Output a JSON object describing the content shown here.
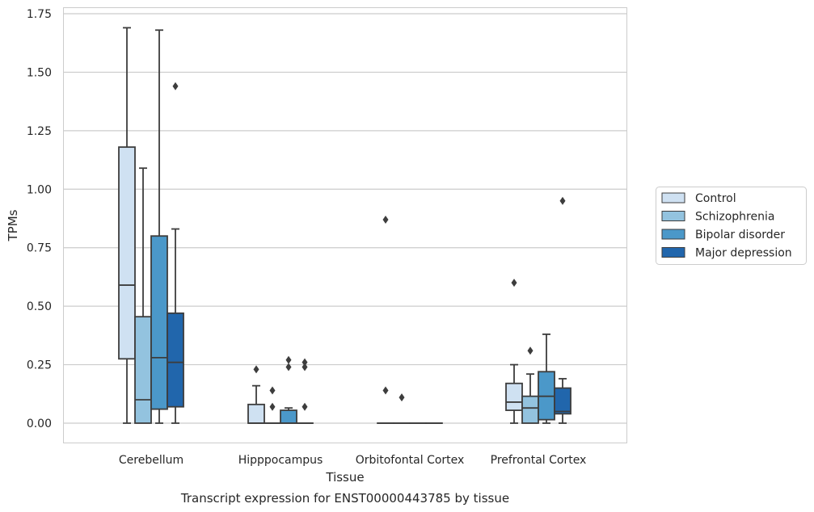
{
  "chart_data": {
    "type": "box",
    "title": "",
    "caption": "Transcript expression for ENST00000443785 by tissue",
    "xlabel": "Tissue",
    "ylabel": "TPMs",
    "ylim": [
      -0.08,
      1.77
    ],
    "yticks": [
      "0.00",
      "0.25",
      "0.50",
      "0.75",
      "1.00",
      "1.25",
      "1.50",
      "1.75"
    ],
    "ytick_values": [
      0,
      0.25,
      0.5,
      0.75,
      1.0,
      1.25,
      1.5,
      1.75
    ],
    "grid": "horizontal",
    "legend_position": "right",
    "categories": [
      "Cerebellum",
      "Hipppocampus",
      "Orbitofontal Cortex",
      "Prefrontal Cortex"
    ],
    "series": [
      {
        "name": "Control",
        "color": "#cfe1f2",
        "boxes": [
          {
            "whislo": 0.0,
            "q1": 0.275,
            "med": 0.59,
            "q3": 1.18,
            "whishi": 1.69,
            "fliers": []
          },
          {
            "whislo": 0.0,
            "q1": 0.0,
            "med": 0.0,
            "q3": 0.08,
            "whishi": 0.16,
            "fliers": [
              0.23
            ]
          },
          {
            "whislo": 0.0,
            "q1": 0.0,
            "med": 0.0,
            "q3": 0.0,
            "whishi": 0.0,
            "fliers": [
              0.87,
              0.14
            ]
          },
          {
            "whislo": 0.0,
            "q1": 0.055,
            "med": 0.09,
            "q3": 0.17,
            "whishi": 0.25,
            "fliers": [
              0.6
            ]
          }
        ]
      },
      {
        "name": "Schizophrenia",
        "color": "#93c3df",
        "boxes": [
          {
            "whislo": 0.0,
            "q1": 0.0,
            "med": 0.1,
            "q3": 0.455,
            "whishi": 1.09,
            "fliers": []
          },
          {
            "whislo": 0.0,
            "q1": 0.0,
            "med": 0.0,
            "q3": 0.0,
            "whishi": 0.0,
            "fliers": [
              0.14,
              0.07
            ]
          },
          {
            "whislo": 0.0,
            "q1": 0.0,
            "med": 0.0,
            "q3": 0.0,
            "whishi": 0.0,
            "fliers": [
              0.11
            ]
          },
          {
            "whislo": 0.0,
            "q1": 0.0,
            "med": 0.065,
            "q3": 0.115,
            "whishi": 0.21,
            "fliers": [
              0.31
            ]
          }
        ]
      },
      {
        "name": "Bipolar disorder",
        "color": "#4b98c9",
        "boxes": [
          {
            "whislo": 0.0,
            "q1": 0.06,
            "med": 0.28,
            "q3": 0.8,
            "whishi": 1.68,
            "fliers": []
          },
          {
            "whislo": 0.0,
            "q1": 0.0,
            "med": 0.0,
            "q3": 0.055,
            "whishi": 0.065,
            "fliers": [
              0.27,
              0.24
            ]
          },
          {
            "whislo": 0.0,
            "q1": 0.0,
            "med": 0.0,
            "q3": 0.0,
            "whishi": 0.0,
            "fliers": []
          },
          {
            "whislo": 0.0,
            "q1": 0.015,
            "med": 0.115,
            "q3": 0.22,
            "whishi": 0.38,
            "fliers": []
          }
        ]
      },
      {
        "name": "Major depression",
        "color": "#2166ac",
        "boxes": [
          {
            "whislo": 0.0,
            "q1": 0.07,
            "med": 0.26,
            "q3": 0.47,
            "whishi": 0.83,
            "fliers": [
              1.44
            ]
          },
          {
            "whislo": 0.0,
            "q1": 0.0,
            "med": 0.0,
            "q3": 0.0,
            "whishi": 0.0,
            "fliers": [
              0.26,
              0.24,
              0.07
            ]
          },
          {
            "whislo": 0.0,
            "q1": 0.0,
            "med": 0.0,
            "q3": 0.0,
            "whishi": 0.0,
            "fliers": []
          },
          {
            "whislo": 0.0,
            "q1": 0.04,
            "med": 0.05,
            "q3": 0.15,
            "whishi": 0.19,
            "fliers": [
              0.95
            ]
          }
        ]
      }
    ]
  },
  "colors": {
    "box_edge": "#3d3d3d",
    "grid": "#cccccc",
    "frame": "#cccccc"
  }
}
